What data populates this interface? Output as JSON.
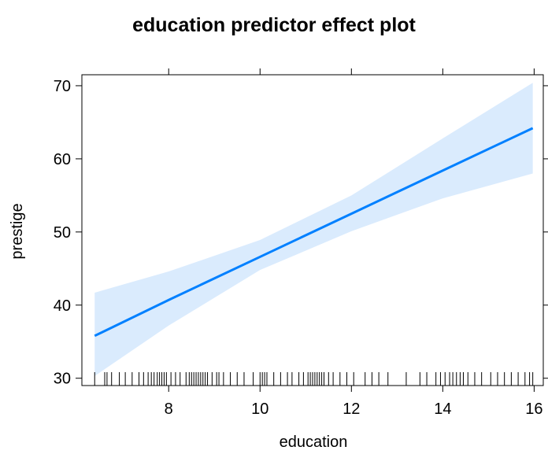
{
  "chart_data": {
    "type": "line",
    "title": "education predictor effect plot",
    "xlabel": "education",
    "ylabel": "prestige",
    "xlim": [
      6.1,
      16.2
    ],
    "ylim": [
      29,
      71.5
    ],
    "x_ticks": [
      8,
      10,
      12,
      14,
      16
    ],
    "y_ticks": [
      30,
      40,
      50,
      60,
      70
    ],
    "grid": false,
    "legend": "none",
    "series": [
      {
        "x": [
          6.38,
          8,
          10,
          12,
          14,
          15.97
        ],
        "y": [
          35.8,
          40.7,
          46.6,
          52.5,
          58.4,
          64.2
        ],
        "lower": [
          30.3,
          37.2,
          44.8,
          50.1,
          54.6,
          58.0
        ],
        "upper": [
          41.7,
          44.6,
          48.9,
          55.0,
          62.8,
          70.4
        ],
        "color": "#0080FF",
        "band_color": "#DAEBFD"
      }
    ],
    "rug_x": [
      6.38,
      6.6,
      6.65,
      6.75,
      6.92,
      7.05,
      7.2,
      7.35,
      7.45,
      7.55,
      7.62,
      7.68,
      7.75,
      7.8,
      7.85,
      7.9,
      7.95,
      8.05,
      8.15,
      8.25,
      8.38,
      8.45,
      8.5,
      8.55,
      8.6,
      8.65,
      8.7,
      8.75,
      8.8,
      8.85,
      8.95,
      9.05,
      9.1,
      9.2,
      9.35,
      9.5,
      9.65,
      9.85,
      10.0,
      10.05,
      10.1,
      10.15,
      10.3,
      10.45,
      10.6,
      10.7,
      10.85,
      10.95,
      11.05,
      11.1,
      11.15,
      11.2,
      11.25,
      11.3,
      11.35,
      11.4,
      11.5,
      11.6,
      11.75,
      11.9,
      12.05,
      12.3,
      12.45,
      12.6,
      12.8,
      13.2,
      13.5,
      13.65,
      13.85,
      13.95,
      14.05,
      14.15,
      14.22,
      14.3,
      14.38,
      14.45,
      14.55,
      14.7,
      14.85,
      15.05,
      15.2,
      15.35,
      15.5,
      15.65,
      15.8,
      15.9,
      15.97
    ]
  }
}
